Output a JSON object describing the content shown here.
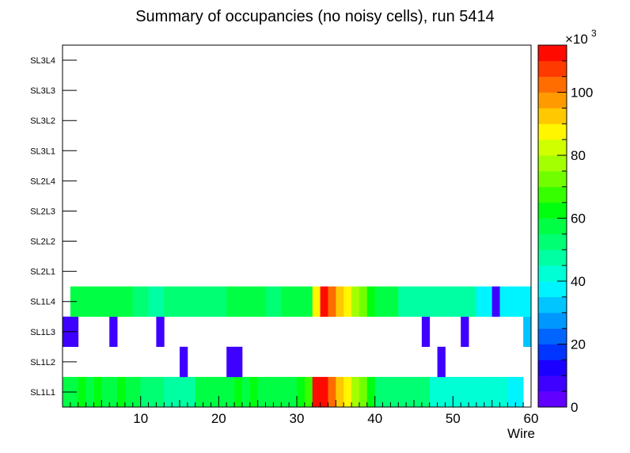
{
  "chart_data": {
    "type": "heatmap",
    "title": "Summary of occupancies (no noisy cells), run 5414",
    "xlabel": "Wire",
    "ylabel": "",
    "xlim": [
      0,
      60
    ],
    "x_ticks": [
      "10",
      "20",
      "30",
      "40",
      "50",
      "60"
    ],
    "y_categories": [
      "SL1L1",
      "SL1L2",
      "SL1L3",
      "SL1L4",
      "SL2L1",
      "SL2L2",
      "SL2L3",
      "SL2L4",
      "SL3L1",
      "SL3L2",
      "SL3L3",
      "SL3L4"
    ],
    "z_range": [
      0,
      115
    ],
    "z_unit_exponent_base": "×10",
    "z_unit_exponent_power": "3",
    "z_ticks": [
      "0",
      "20",
      "40",
      "60",
      "80",
      "100"
    ],
    "colorbar_colors": [
      "#6100ff",
      "#3e00ff",
      "#1b00ff",
      "#0034ff",
      "#0065ff",
      "#0098ff",
      "#00c5ff",
      "#00f4ff",
      "#00ffd4",
      "#00ffa2",
      "#00ff73",
      "#00ff44",
      "#00ff0f",
      "#36ff00",
      "#71ff00",
      "#a4ff00",
      "#d0ff00",
      "#fff600",
      "#ffc800",
      "#ff9b00",
      "#ff6c00",
      "#ff3a00",
      "#ff0a00"
    ],
    "rows": [
      {
        "layer": "SL1L1",
        "values": [
          55,
          55,
          60,
          56,
          60,
          58,
          55,
          62,
          56,
          59,
          52,
          52,
          52,
          49,
          49,
          46,
          46,
          56,
          56,
          56,
          56,
          56,
          60,
          56,
          60,
          56,
          56,
          56,
          56,
          56,
          62,
          66,
          110,
          113,
          102,
          94,
          86,
          78,
          70,
          64,
          50,
          50,
          50,
          50,
          50,
          50,
          50,
          42,
          42,
          42,
          42,
          42,
          42,
          42,
          42,
          42,
          42,
          38,
          38,
          null
        ]
      },
      {
        "layer": "SL1L2",
        "values": [
          null,
          null,
          null,
          null,
          null,
          null,
          null,
          null,
          null,
          null,
          null,
          null,
          null,
          null,
          null,
          5,
          null,
          null,
          null,
          null,
          null,
          5,
          5,
          null,
          null,
          null,
          null,
          null,
          null,
          null,
          null,
          null,
          null,
          null,
          null,
          null,
          null,
          null,
          null,
          null,
          null,
          null,
          null,
          null,
          null,
          null,
          null,
          null,
          5,
          null,
          null,
          null,
          null,
          null,
          null,
          null,
          null,
          null,
          null,
          null
        ]
      },
      {
        "layer": "SL1L3",
        "values": [
          5,
          5,
          null,
          null,
          null,
          null,
          5,
          null,
          null,
          null,
          null,
          null,
          5,
          null,
          null,
          null,
          null,
          null,
          null,
          null,
          null,
          null,
          null,
          null,
          null,
          null,
          null,
          null,
          null,
          null,
          null,
          null,
          null,
          null,
          null,
          null,
          null,
          null,
          null,
          null,
          null,
          null,
          null,
          null,
          null,
          null,
          5,
          null,
          null,
          null,
          null,
          5,
          null,
          null,
          null,
          null,
          null,
          null,
          null,
          30
        ]
      },
      {
        "layer": "SL1L4",
        "values": [
          null,
          56,
          56,
          56,
          56,
          56,
          56,
          56,
          56,
          52,
          52,
          45,
          45,
          52,
          52,
          52,
          52,
          52,
          52,
          52,
          52,
          57,
          57,
          57,
          57,
          57,
          52,
          52,
          57,
          57,
          57,
          57,
          88,
          113,
          102,
          94,
          86,
          78,
          70,
          64,
          56,
          56,
          56,
          47,
          47,
          47,
          47,
          47,
          47,
          47,
          47,
          47,
          47,
          38,
          38,
          5,
          38,
          38,
          38,
          38
        ]
      },
      {
        "layer": "SL2L1",
        "values": []
      },
      {
        "layer": "SL2L2",
        "values": []
      },
      {
        "layer": "SL2L3",
        "values": []
      },
      {
        "layer": "SL2L4",
        "values": []
      },
      {
        "layer": "SL3L1",
        "values": []
      },
      {
        "layer": "SL3L2",
        "values": []
      },
      {
        "layer": "SL3L3",
        "values": []
      },
      {
        "layer": "SL3L4",
        "values": []
      }
    ]
  }
}
